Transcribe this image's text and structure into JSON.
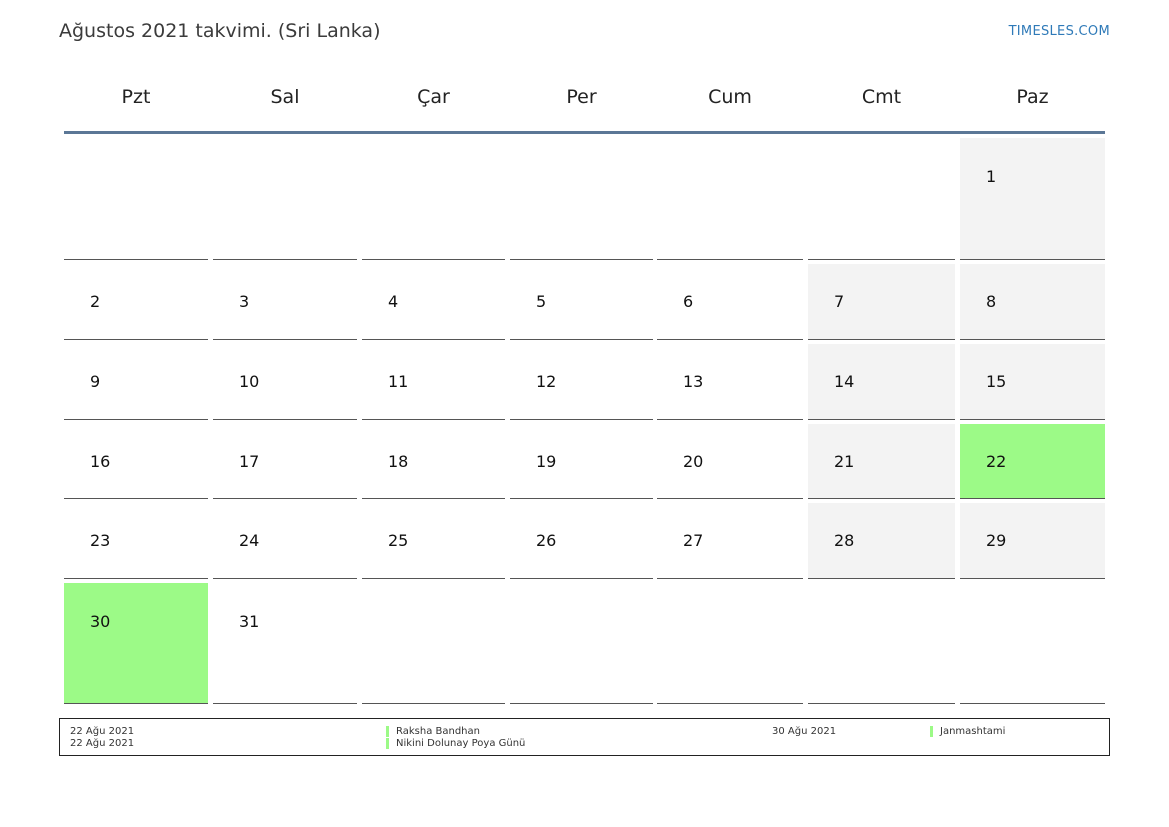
{
  "title": "Ağustos 2021 takvimi. (Sri Lanka)",
  "brand": "TIMESLES.COM",
  "weekdays": [
    "Pzt",
    "Sal",
    "Çar",
    "Per",
    "Cum",
    "Cmt",
    "Paz"
  ],
  "days": {
    "d1": "1",
    "d2": "2",
    "d3": "3",
    "d4": "4",
    "d5": "5",
    "d6": "6",
    "d7": "7",
    "d8": "8",
    "d9": "9",
    "d10": "10",
    "d11": "11",
    "d12": "12",
    "d13": "13",
    "d14": "14",
    "d15": "15",
    "d16": "16",
    "d17": "17",
    "d18": "18",
    "d19": "19",
    "d20": "20",
    "d21": "21",
    "d22": "22",
    "d23": "23",
    "d24": "24",
    "d25": "25",
    "d26": "26",
    "d27": "27",
    "d28": "28",
    "d29": "29",
    "d30": "30",
    "d31": "31"
  },
  "holiday_color": "#9cfa87",
  "weekend_color": "#f3f3f3",
  "holidays": [
    {
      "date": "22 Ağu 2021",
      "name": "Raksha Bandhan"
    },
    {
      "date": "22 Ağu 2021",
      "name": "Nikini Dolunay Poya Günü"
    },
    {
      "date": "30 Ağu 2021",
      "name": "Janmashtami"
    }
  ]
}
